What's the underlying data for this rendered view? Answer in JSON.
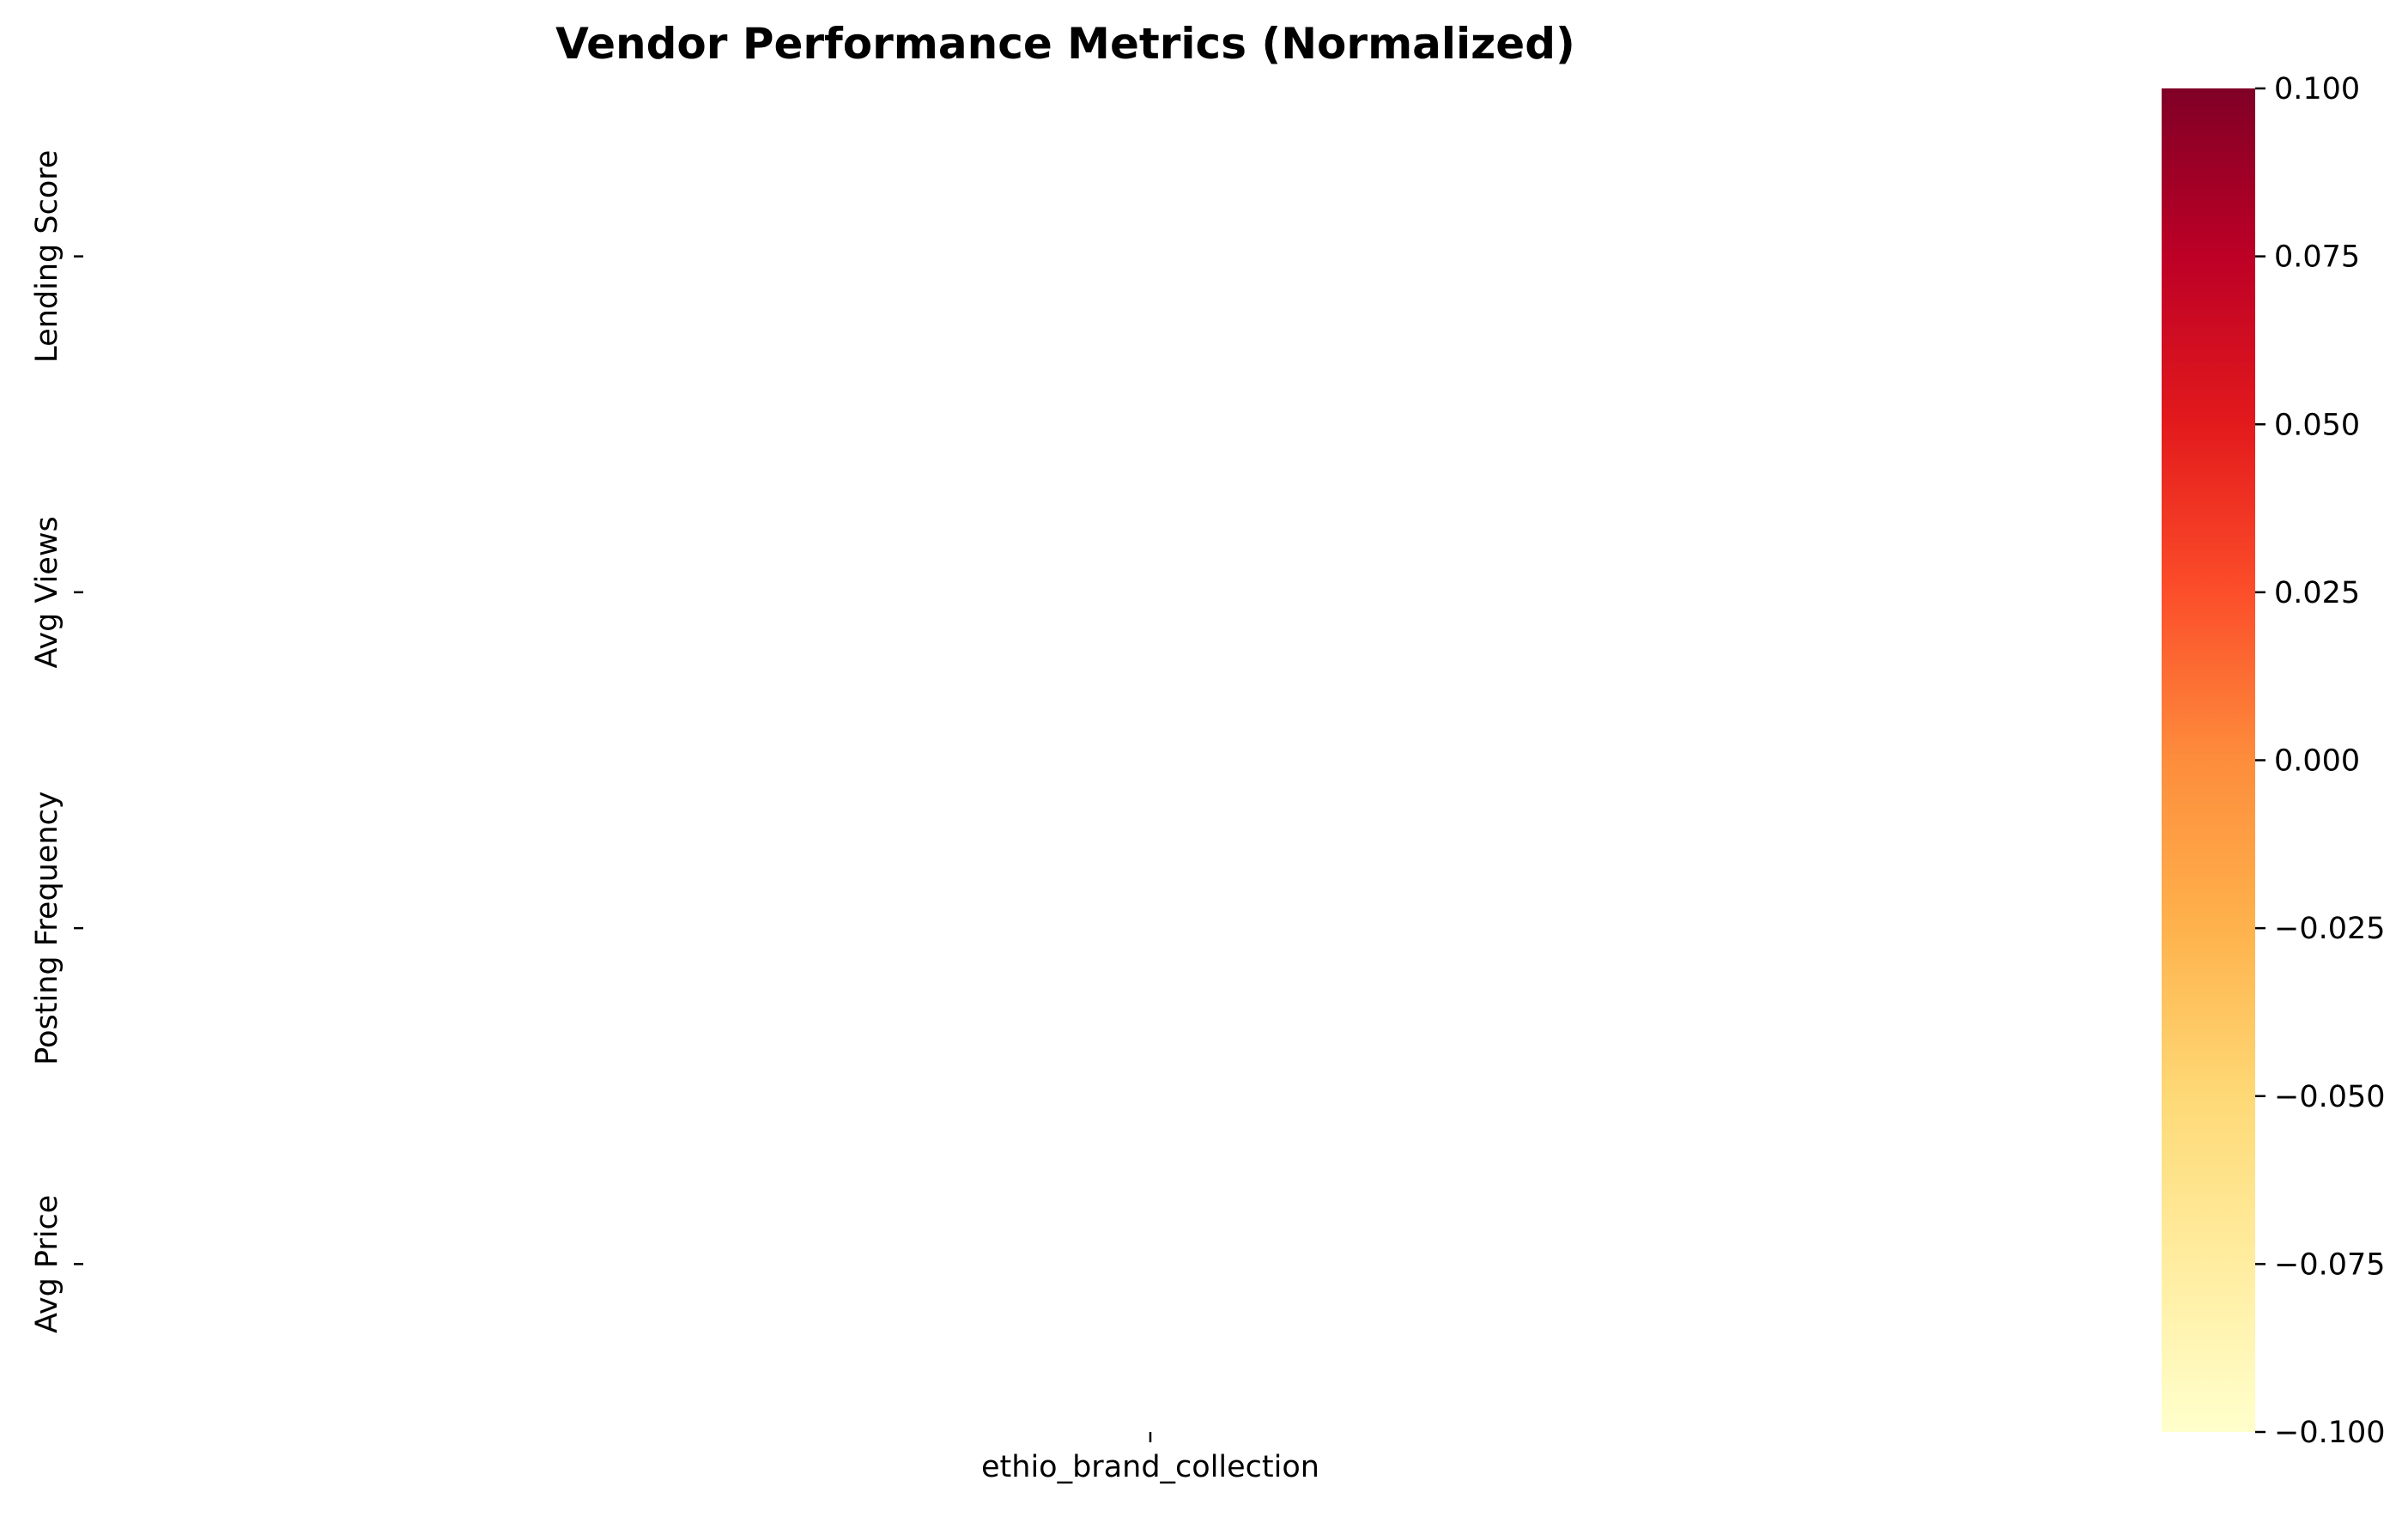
{
  "chart_data": {
    "type": "heatmap",
    "title": "Vendor Performance Metrics (Normalized)",
    "xlabel": "",
    "ylabel": "",
    "x_categories": [
      "ethio_brand_collection"
    ],
    "y_categories": [
      "Lending Score",
      "Avg Views",
      "Posting Frequency",
      "Avg Price"
    ],
    "values": [
      [
        null
      ],
      [
        null
      ],
      [
        null
      ],
      [
        null
      ]
    ],
    "colormap": "YlOrRd",
    "colorbar": {
      "range": [
        -0.1,
        0.1
      ],
      "ticks": [
        0.1,
        0.075,
        0.05,
        0.025,
        0.0,
        -0.025,
        -0.05,
        -0.075,
        -0.1
      ],
      "tick_labels": [
        "0.100",
        "0.075",
        "0.050",
        "0.025",
        "0.000",
        "−0.025",
        "−0.050",
        "−0.075",
        "−0.100"
      ],
      "colors": [
        "#ffffcc",
        "#ffeda0",
        "#fed976",
        "#feb24c",
        "#fd8d3c",
        "#fc4e2a",
        "#e31a1c",
        "#bd0026",
        "#800026"
      ]
    },
    "grid": false,
    "legend": "colorbar-right"
  }
}
